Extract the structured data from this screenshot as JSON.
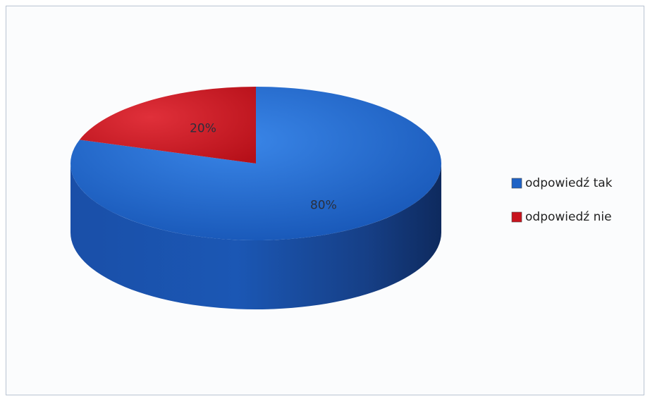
{
  "chart_data": {
    "type": "pie",
    "style": "3d",
    "title": "",
    "categories": [
      "odpowiedź tak",
      "odpowiedź nie"
    ],
    "values": [
      80,
      20
    ],
    "data_labels": [
      "80%",
      "20%"
    ],
    "colors": [
      "#1f63c6",
      "#c8141e"
    ],
    "legend": {
      "position": "right",
      "entries": [
        "odpowiedź tak",
        "odpowiedź nie"
      ]
    }
  }
}
